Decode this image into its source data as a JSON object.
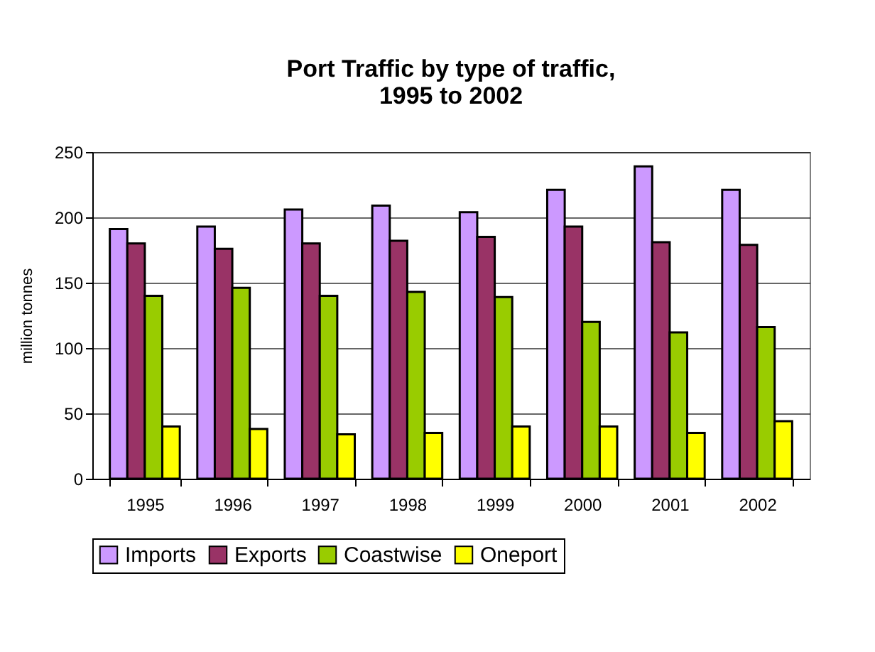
{
  "chart_data": {
    "type": "bar",
    "title": [
      "Port Traffic by type of traffic,",
      "1995 to 2002"
    ],
    "ylabel": "million tonnes",
    "categories": [
      "1995",
      "1996",
      "1997",
      "1998",
      "1999",
      "2000",
      "2001",
      "2002"
    ],
    "series": [
      {
        "name": "Imports",
        "color": "#cc99ff",
        "values": [
          191,
          193,
          206,
          209,
          204,
          221,
          239,
          221
        ]
      },
      {
        "name": "Exports",
        "color": "#993366",
        "values": [
          180,
          176,
          180,
          182,
          185,
          193,
          181,
          179
        ]
      },
      {
        "name": "Coastwise",
        "color": "#99cc00",
        "values": [
          140,
          146,
          140,
          143,
          139,
          120,
          112,
          116
        ]
      },
      {
        "name": "Oneport",
        "color": "#ffff00",
        "values": [
          40,
          38,
          34,
          35,
          40,
          40,
          35,
          44
        ]
      }
    ],
    "ylim": [
      0,
      250
    ],
    "yticks": [
      0,
      50,
      100,
      150,
      200,
      250
    ],
    "grid": "y",
    "legend": "bottom"
  }
}
